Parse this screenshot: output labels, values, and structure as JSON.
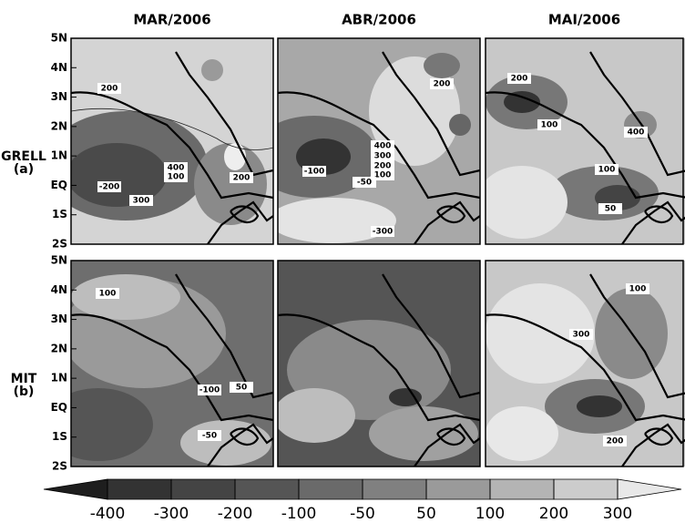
{
  "columns": [
    "MAR/2006",
    "ABR/2006",
    "MAI/2006"
  ],
  "rows": [
    {
      "name": "GRELL",
      "letter": "(a)"
    },
    {
      "name": "MIT",
      "letter": "(b)"
    }
  ],
  "lat_labels": [
    "5N",
    "4N",
    "3N",
    "2N",
    "1N",
    "EQ",
    "1S",
    "2S"
  ],
  "panels": [
    {
      "contour_labels": [
        "200",
        "-200",
        "300",
        "400",
        "100",
        "200"
      ]
    },
    {
      "contour_labels": [
        "200",
        "400",
        "300",
        "200",
        "100",
        "-100",
        "-50",
        "-300"
      ]
    },
    {
      "contour_labels": [
        "200",
        "100",
        "400",
        "100",
        "50"
      ]
    },
    {
      "contour_labels": [
        "100",
        "-100",
        "50",
        "-50"
      ]
    },
    {
      "contour_labels": []
    },
    {
      "contour_labels": [
        "100",
        "300",
        "200"
      ]
    }
  ],
  "colorbar": {
    "levels": [
      -400,
      -300,
      -200,
      -100,
      -50,
      50,
      100,
      200,
      300
    ],
    "colors": [
      "#1e1e1e",
      "#333333",
      "#444444",
      "#555555",
      "#6a6a6a",
      "#808080",
      "#9a9a9a",
      "#b4b4b4",
      "#cccccc",
      "#e8e8e8"
    ]
  }
}
